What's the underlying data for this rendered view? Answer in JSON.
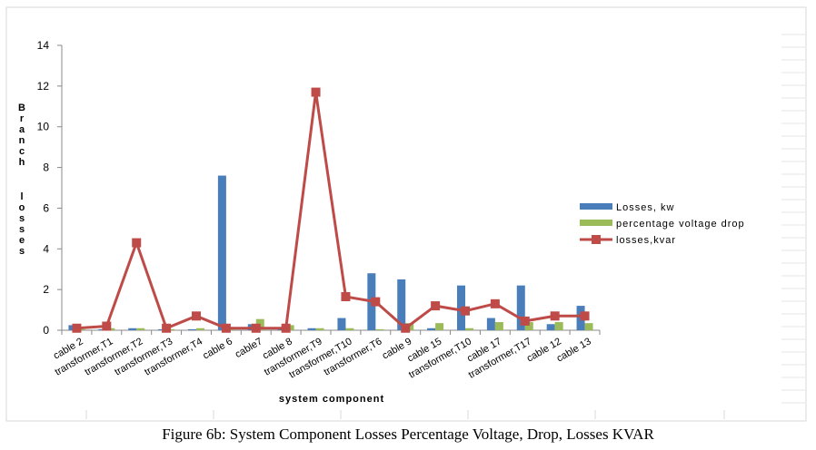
{
  "caption": "Figure 6b:  System Component Losses Percentage Voltage, Drop, Losses KVAR",
  "chart_data": {
    "type": "bar",
    "title": "",
    "xlabel": "system component",
    "ylabel": "Branch losses",
    "ylim": [
      0,
      14
    ],
    "yticks": [
      0,
      2,
      4,
      6,
      8,
      10,
      12,
      14
    ],
    "grid": false,
    "legend_position": "right",
    "categories": [
      "cable 2",
      "transformer,T1",
      "transformer,T2",
      "transformer,T3",
      "transformer,T4",
      "cable 6",
      "cable7",
      "cable 8",
      "transformer,T9",
      "transformer,T10",
      "transformer,T6",
      "cable 9",
      "cable 15",
      "transformer,T10",
      "cable 17",
      "transformer,T17",
      "cable 12",
      "cable 13"
    ],
    "series": [
      {
        "name": "Losses, kw",
        "type": "bar",
        "color": "#4a7ebb",
        "values": [
          0.25,
          0.05,
          0.1,
          0.05,
          0.05,
          7.6,
          0.3,
          0.05,
          0.1,
          0.6,
          2.8,
          2.5,
          0.1,
          2.2,
          0.6,
          2.2,
          0.3,
          1.2
        ]
      },
      {
        "name": "percentage voltage drop",
        "type": "bar",
        "color": "#9bbb59",
        "values": [
          0.05,
          0.1,
          0.1,
          0.05,
          0.1,
          0.05,
          0.55,
          0.25,
          0.1,
          0.1,
          0.05,
          0.35,
          0.35,
          0.1,
          0.4,
          0.4,
          0.4,
          0.35
        ]
      },
      {
        "name": "losses,kvar",
        "type": "line",
        "color": "#be4b48",
        "values": [
          0.1,
          0.2,
          4.3,
          0.1,
          0.7,
          0.1,
          0.1,
          0.1,
          11.7,
          1.65,
          1.4,
          0.1,
          1.2,
          0.95,
          1.3,
          0.45,
          0.7,
          0.7
        ]
      }
    ]
  }
}
